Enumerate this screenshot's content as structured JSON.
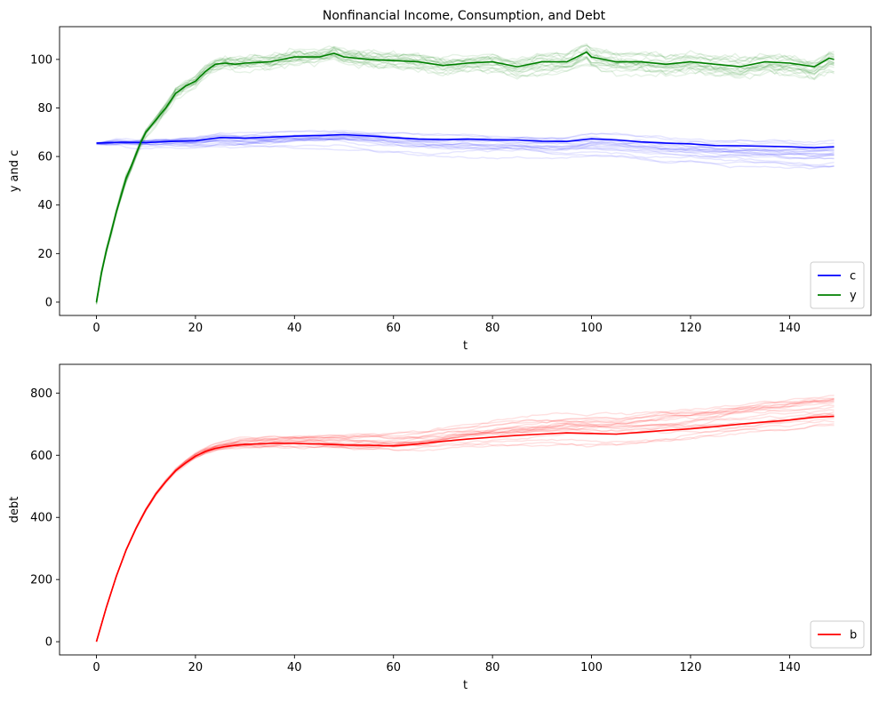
{
  "figure": {
    "background": "#ffffff"
  },
  "chart_data": [
    {
      "type": "line",
      "title": "Nonfinancial Income, Consumption, and Debt",
      "xlabel": "t",
      "ylabel": "y and c",
      "xlim": [
        -7.45,
        156.45
      ],
      "ylim": [
        -5.5,
        113.5
      ],
      "xticks": [
        0,
        20,
        40,
        60,
        80,
        100,
        120,
        140
      ],
      "yticks": [
        0,
        20,
        40,
        60,
        80,
        100
      ],
      "grid": false,
      "legend": {
        "position": "lower-right",
        "entries": [
          {
            "label": "c",
            "color": "#0000ff"
          },
          {
            "label": "y",
            "color": "#008000"
          }
        ]
      },
      "series": [
        {
          "name": "c",
          "color": "#0000ff",
          "x": [
            0,
            5,
            10,
            15,
            20,
            25,
            30,
            35,
            40,
            45,
            50,
            55,
            60,
            65,
            70,
            75,
            80,
            85,
            90,
            95,
            100,
            105,
            110,
            115,
            120,
            125,
            130,
            135,
            140,
            145,
            149
          ],
          "values": [
            65.5,
            65.9,
            65.7,
            66.2,
            66.5,
            67.8,
            67.6,
            68.0,
            68.4,
            68.6,
            69.0,
            68.5,
            67.8,
            67.2,
            67.0,
            67.2,
            66.8,
            66.8,
            66.3,
            66.2,
            67.3,
            66.8,
            66.0,
            65.5,
            65.2,
            64.5,
            64.4,
            64.2,
            64.0,
            63.6,
            64.0
          ]
        },
        {
          "name": "y",
          "color": "#008000",
          "x": [
            0,
            1,
            2,
            3,
            4,
            5,
            6,
            7,
            8,
            9,
            10,
            12,
            14,
            16,
            18,
            20,
            22,
            24,
            26,
            28,
            30,
            35,
            40,
            45,
            48,
            50,
            55,
            60,
            65,
            70,
            75,
            80,
            85,
            90,
            95,
            99,
            100,
            105,
            110,
            115,
            120,
            125,
            130,
            135,
            140,
            145,
            148,
            149
          ],
          "values": [
            0,
            12,
            21,
            29,
            37,
            44,
            51,
            56,
            61,
            66,
            70,
            75,
            80,
            86,
            89,
            91,
            95,
            98,
            98.5,
            98,
            98.5,
            99,
            101,
            101,
            102.5,
            101,
            100,
            99.5,
            99,
            97.5,
            98.5,
            99,
            97,
            99,
            99,
            103,
            101,
            99,
            99,
            98,
            99,
            98,
            97,
            99,
            98.5,
            97,
            100.5,
            100
          ]
        }
      ],
      "simulation_paths": {
        "count": 20,
        "color_c": "#0000ff",
        "color_y": "#008000",
        "opacity": 0.1
      }
    },
    {
      "type": "line",
      "title": "",
      "xlabel": "t",
      "ylabel": "debt",
      "xlim": [
        -7.45,
        156.45
      ],
      "ylim": [
        -42.5,
        892.5
      ],
      "xticks": [
        0,
        20,
        40,
        60,
        80,
        100,
        120,
        140
      ],
      "yticks": [
        0,
        200,
        400,
        600,
        800
      ],
      "grid": false,
      "legend": {
        "position": "lower-right",
        "entries": [
          {
            "label": "b",
            "color": "#ff0000"
          }
        ]
      },
      "series": [
        {
          "name": "b",
          "color": "#ff0000",
          "x": [
            0,
            2,
            4,
            6,
            8,
            10,
            12,
            14,
            16,
            18,
            20,
            22,
            24,
            26,
            28,
            30,
            35,
            40,
            45,
            50,
            55,
            60,
            65,
            70,
            75,
            80,
            85,
            90,
            95,
            100,
            105,
            110,
            115,
            120,
            125,
            130,
            135,
            140,
            145,
            149
          ],
          "values": [
            0,
            110,
            210,
            295,
            365,
            425,
            475,
            515,
            550,
            575,
            597,
            612,
            622,
            628,
            632,
            635,
            638,
            638,
            636,
            633,
            632,
            630,
            636,
            645,
            652,
            658,
            664,
            668,
            672,
            670,
            668,
            674,
            680,
            685,
            692,
            700,
            707,
            713,
            722,
            725
          ]
        }
      ],
      "simulation_paths": {
        "count": 20,
        "color": "#ff0000",
        "opacity": 0.12
      }
    }
  ]
}
